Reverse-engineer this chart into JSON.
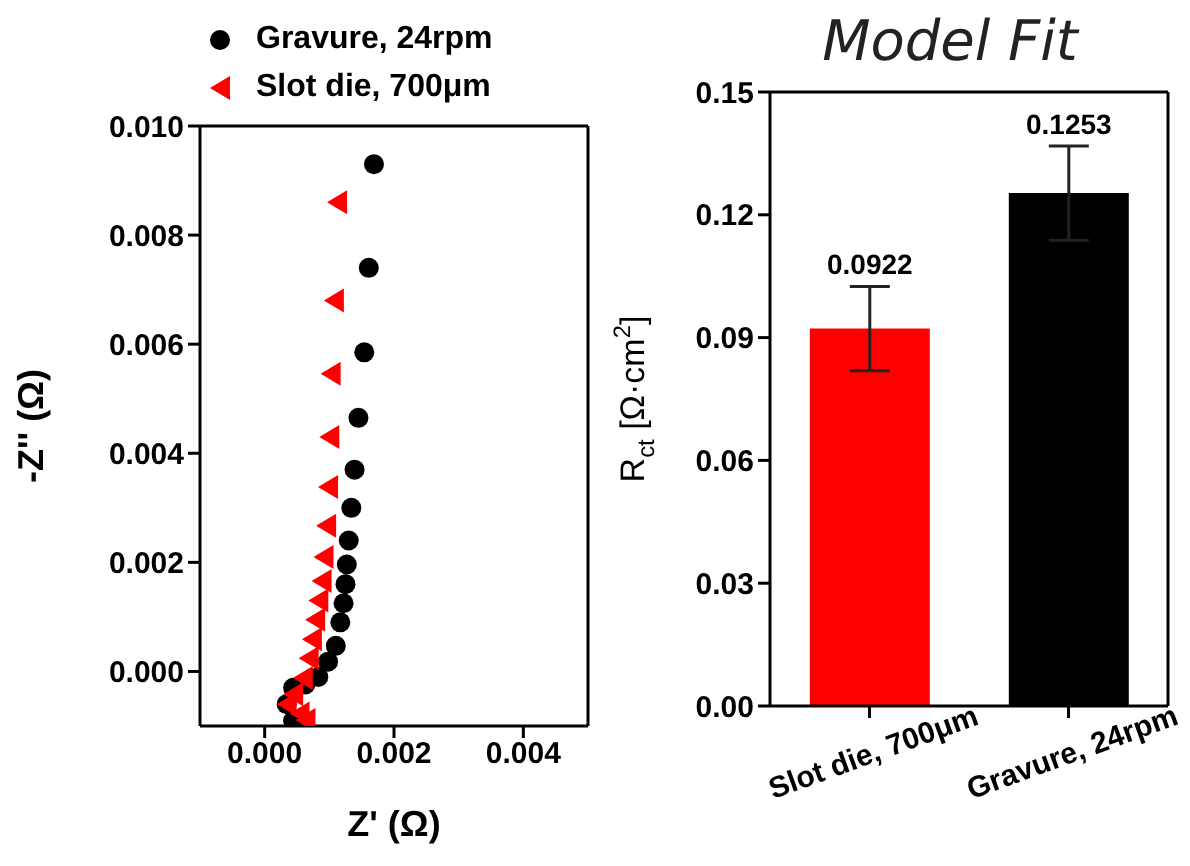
{
  "chart_data": [
    {
      "type": "scatter",
      "xlabel": "Z' (Ω)",
      "ylabel": "-Z'' (Ω)",
      "legend": "top left",
      "xlim": [
        -0.001,
        0.005
      ],
      "ylim": [
        -0.001,
        0.01
      ],
      "xticks": [
        {
          "value": 0,
          "label": "0.000"
        },
        {
          "value": 0.002,
          "label": "0.002"
        },
        {
          "value": 0.004,
          "label": "0.004"
        }
      ],
      "yticks": [
        {
          "value": 0,
          "label": "0.000"
        },
        {
          "value": 0.002,
          "label": "0.002"
        },
        {
          "value": 0.004,
          "label": "0.004"
        },
        {
          "value": 0.006,
          "label": "0.006"
        },
        {
          "value": 0.008,
          "label": "0.008"
        },
        {
          "value": 0.01,
          "label": "0.010"
        }
      ],
      "series": [
        {
          "name": "Gravure, 24rpm",
          "color": "#000000",
          "marker": "circle",
          "x": [
            0.00169,
            0.00161,
            0.00154,
            0.00145,
            0.00139,
            0.00134,
            0.0013,
            0.00127,
            0.00125,
            0.00122,
            0.00117,
            0.0011,
            0.00098,
            0.00083,
            0.00063,
            0.00044,
            0.00034,
            0.00044
          ],
          "values": [
            0.0093,
            0.0074,
            0.00585,
            0.00465,
            0.0037,
            0.003,
            0.0024,
            0.00196,
            0.0016,
            0.00125,
            0.0009,
            0.00047,
            0.00018,
            -0.0001,
            -0.00024,
            -0.0003,
            -0.0006,
            -0.0009
          ]
        },
        {
          "name": "Slot die, 700μm",
          "color": "#ff0000",
          "marker": "triangle",
          "x": [
            0.00112,
            0.00107,
            0.00102,
            0.001,
            0.00098,
            0.00095,
            0.00091,
            0.00088,
            0.00083,
            0.00078,
            0.00073,
            0.00068,
            0.00059,
            0.00044,
            0.00034,
            0.00054,
            0.00063
          ],
          "values": [
            0.0086,
            0.0068,
            0.00546,
            0.0043,
            0.00338,
            0.00267,
            0.0021,
            0.00166,
            0.0013,
            0.00095,
            0.00059,
            0.00024,
            -0.00012,
            -0.00042,
            -0.0006,
            -0.00077,
            -0.00089
          ]
        }
      ]
    },
    {
      "type": "bar",
      "title": "Model Fit",
      "ylabel": "R$_{ct}$ [Ω·cm$^{2}$]",
      "categories": [
        "Slot die, 700μm",
        "Gravure, 24rpm"
      ],
      "values": [
        0.0922,
        0.1253
      ],
      "colors": [
        "#ff0000",
        "#000000"
      ],
      "errors": [
        0.0103,
        0.0115
      ],
      "data_labels": true,
      "ylim": [
        0,
        0.15
      ],
      "yticks": [
        {
          "value": 0,
          "label": "0.00"
        },
        {
          "value": 0.03,
          "label": "0.03"
        },
        {
          "value": 0.06,
          "label": "0.06"
        },
        {
          "value": 0.09,
          "label": "0.09"
        },
        {
          "value": 0.12,
          "label": "0.12"
        },
        {
          "value": 0.15,
          "label": "0.15"
        }
      ]
    }
  ]
}
